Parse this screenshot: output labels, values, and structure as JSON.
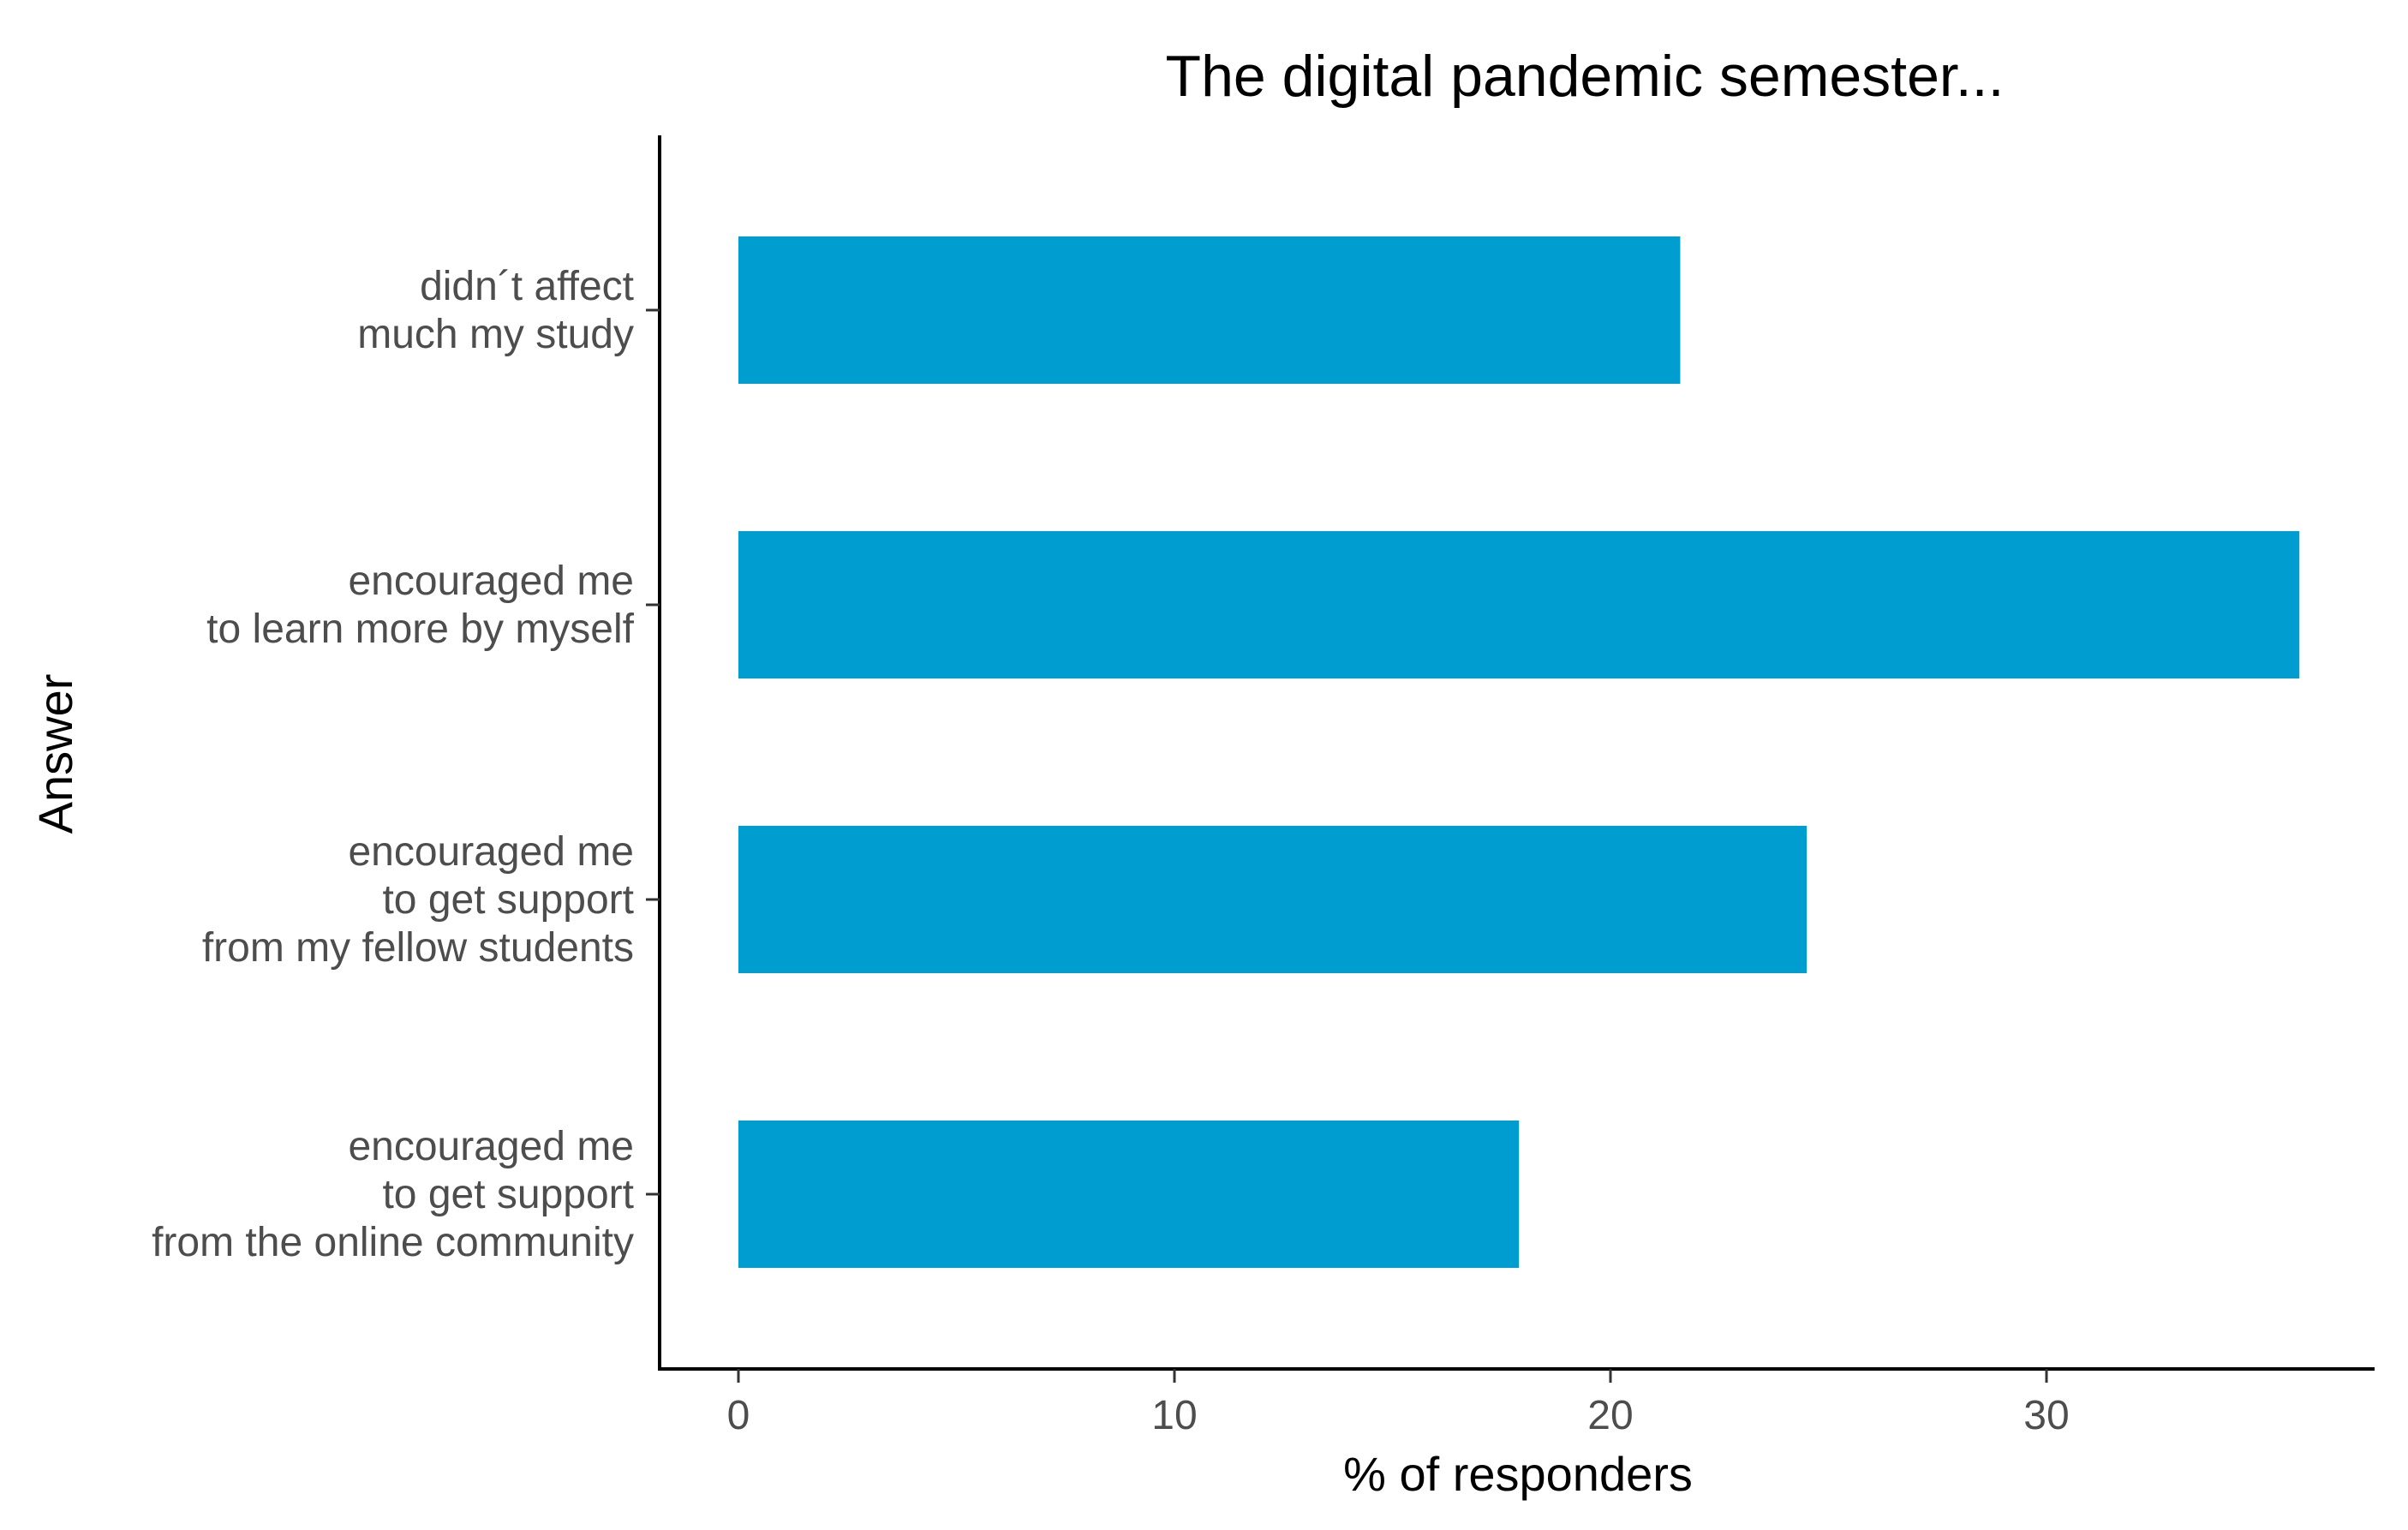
{
  "chart_data": {
    "type": "bar",
    "orientation": "horizontal",
    "title": "The digital pandemic semester...",
    "xlabel": "% of responders",
    "ylabel": "Answer",
    "xlim": [
      0,
      37
    ],
    "x_ticks": [
      0,
      10,
      20,
      30
    ],
    "x_tick_labels": [
      "0",
      "10",
      "20",
      "30"
    ],
    "grid": false,
    "legend": "none",
    "bar_color": "#009dd1",
    "categories": [
      {
        "lines": [
          "didn´t affect",
          "much my study"
        ],
        "value": 21.6
      },
      {
        "lines": [
          "encouraged me",
          "to learn more by myself"
        ],
        "value": 35.8
      },
      {
        "lines": [
          "encouraged me",
          "to get support",
          "from my fellow students"
        ],
        "value": 24.5
      },
      {
        "lines": [
          "encouraged me",
          "to get support",
          "from the online community"
        ],
        "value": 17.9
      }
    ]
  }
}
